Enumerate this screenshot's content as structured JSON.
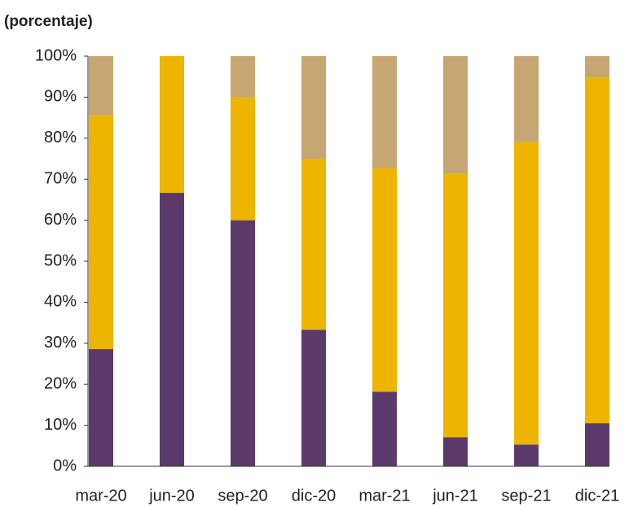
{
  "chart_data": {
    "type": "stacked_bar",
    "title": "(porcentaje)",
    "categories": [
      "mar-20",
      "jun-20",
      "sep-20",
      "dic-20",
      "mar-21",
      "jun-21",
      "sep-21",
      "dic-21"
    ],
    "series": [
      {
        "color": "#5b3a6b",
        "values": [
          28.6,
          66.7,
          60,
          33.3,
          18.2,
          7.1,
          5.3,
          10.5
        ]
      },
      {
        "color": "#edb400",
        "values": [
          57.1,
          33.3,
          30,
          41.7,
          54.5,
          64.3,
          73.7,
          84.2
        ]
      },
      {
        "color": "#c6a673",
        "values": [
          14.3,
          0,
          10,
          25,
          27.3,
          28.6,
          21,
          5.3
        ]
      }
    ],
    "ylim": [
      0,
      100
    ],
    "yticks": [
      {
        "value": 0,
        "label": "0%"
      },
      {
        "value": 10,
        "label": "10%"
      },
      {
        "value": 20,
        "label": "20%"
      },
      {
        "value": 30,
        "label": "30%"
      },
      {
        "value": 40,
        "label": "40%"
      },
      {
        "value": 50,
        "label": "50%"
      },
      {
        "value": 60,
        "label": "60%"
      },
      {
        "value": 70,
        "label": "70%"
      },
      {
        "value": 80,
        "label": "80%"
      },
      {
        "value": 90,
        "label": "90%"
      },
      {
        "value": 100,
        "label": "100%"
      }
    ],
    "grid": false
  }
}
